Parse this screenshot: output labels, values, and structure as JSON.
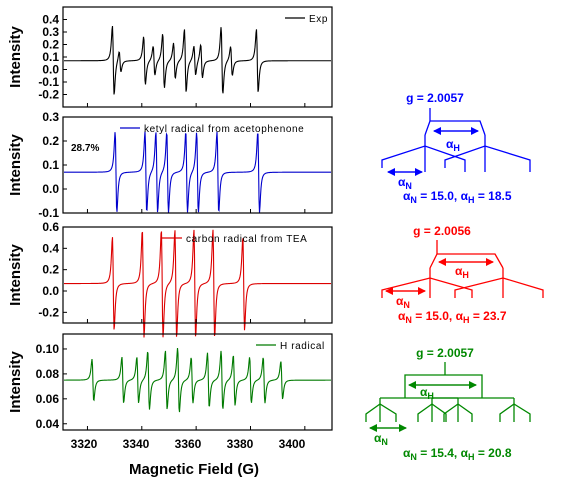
{
  "chart_data": [
    {
      "type": "line",
      "panel": "Exp",
      "ylabel": "Intensity",
      "ylim": [
        -0.3,
        0.5
      ],
      "yticks": [
        "0.4",
        "0.3",
        "0.2",
        "0.1",
        "0.0",
        "-0.1",
        "-0.2"
      ],
      "ytick_values": [
        0.4,
        0.3,
        0.2,
        0.1,
        0.0,
        -0.1,
        -0.2
      ],
      "series": [
        {
          "name": "Exp",
          "color": "#000000",
          "baseline": 0.07,
          "lines": [
            {
              "x": 3329.5,
              "h": 0.33
            },
            {
              "x": 3332.0,
              "h": 0.1
            },
            {
              "x": 3341.0,
              "h": 0.23
            },
            {
              "x": 3344.5,
              "h": 0.14
            },
            {
              "x": 3348.0,
              "h": 0.26
            },
            {
              "x": 3352.0,
              "h": 0.17
            },
            {
              "x": 3356.0,
              "h": 0.3
            },
            {
              "x": 3359.5,
              "h": 0.14
            },
            {
              "x": 3362.0,
              "h": 0.16
            },
            {
              "x": 3369.5,
              "h": 0.32
            },
            {
              "x": 3373.0,
              "h": 0.14
            },
            {
              "x": 3382.5,
              "h": 0.3
            }
          ]
        }
      ]
    },
    {
      "type": "line",
      "panel": "ketyl",
      "ylabel": "Intensity",
      "ylim": [
        -0.1,
        0.3
      ],
      "yticks": [
        "0.3",
        "0.2",
        "0.1",
        "0.0",
        "-0.1"
      ],
      "ytick_values": [
        0.3,
        0.2,
        0.1,
        0.0,
        -0.1
      ],
      "annotation": "28.7%",
      "series": [
        {
          "name": "ketyl radical from acetophenone",
          "color": "#0000cc",
          "baseline": 0.07,
          "lines": [
            {
              "x": 3330.5,
              "h": 0.2
            },
            {
              "x": 3341.5,
              "h": 0.2
            },
            {
              "x": 3345.5,
              "h": 0.2
            },
            {
              "x": 3349.5,
              "h": 0.2
            },
            {
              "x": 3356.5,
              "h": 0.2
            },
            {
              "x": 3360.5,
              "h": 0.2
            },
            {
              "x": 3368.0,
              "h": 0.2
            },
            {
              "x": 3383.0,
              "h": 0.2
            }
          ]
        }
      ]
    },
    {
      "type": "line",
      "panel": "carbon",
      "ylabel": "Intensity",
      "ylim": [
        -0.3,
        0.6
      ],
      "yticks": [
        "0.6",
        "0.4",
        "0.2",
        "0.0",
        "-0.2"
      ],
      "ytick_values": [
        0.6,
        0.4,
        0.2,
        0.0,
        -0.2
      ],
      "series": [
        {
          "name": "carbon radical from TEA",
          "color": "#dd0000",
          "baseline": 0.07,
          "lines": [
            {
              "x": 3329.5,
              "h": 0.52
            },
            {
              "x": 3340.5,
              "h": 0.6
            },
            {
              "x": 3347.5,
              "h": 0.6
            },
            {
              "x": 3352.5,
              "h": 0.6
            },
            {
              "x": 3359.5,
              "h": 0.6
            },
            {
              "x": 3366.5,
              "h": 0.6
            },
            {
              "x": 3377.5,
              "h": 0.52
            }
          ]
        }
      ]
    },
    {
      "type": "line",
      "panel": "H",
      "ylabel": "Intensity",
      "xlabel": "Magnetic Field (G)",
      "xlim": [
        3311,
        3410
      ],
      "xticks": [
        3320,
        3340,
        3360,
        3380,
        3400
      ],
      "ylim": [
        0.035,
        0.112
      ],
      "yticks": [
        "0.10",
        "0.08",
        "0.06",
        "0.04"
      ],
      "ytick_values": [
        0.1,
        0.08,
        0.06,
        0.04
      ],
      "series": [
        {
          "name": "H radical",
          "color": "#007a00",
          "baseline": 0.075,
          "lines": [
            {
              "x": 3322.0,
              "h": 0.02
            },
            {
              "x": 3333.0,
              "h": 0.022
            },
            {
              "x": 3338.5,
              "h": 0.022
            },
            {
              "x": 3342.5,
              "h": 0.028
            },
            {
              "x": 3349.0,
              "h": 0.028
            },
            {
              "x": 3353.5,
              "h": 0.031
            },
            {
              "x": 3358.5,
              "h": 0.022
            },
            {
              "x": 3364.5,
              "h": 0.026
            },
            {
              "x": 3369.5,
              "h": 0.028
            },
            {
              "x": 3374.0,
              "h": 0.024
            },
            {
              "x": 3380.0,
              "h": 0.022
            },
            {
              "x": 3385.0,
              "h": 0.022
            },
            {
              "x": 3391.5,
              "h": 0.018
            }
          ]
        }
      ]
    }
  ],
  "xticks_labels": [
    "3320",
    "3340",
    "3360",
    "3380",
    "3400"
  ],
  "diagrams": [
    {
      "color": "#0000ff",
      "g_label": "g = 2.0057",
      "aH_sym": "α",
      "aH_sub": "H",
      "aN_sym": "α",
      "aN_sub": "N",
      "params": {
        "aN_sym": "α",
        "aN_sub": "N",
        "aN_val": " = 15.0, ",
        "aH_sym": "α",
        "aH_sub": "H",
        "aH_val": " = 18.5"
      }
    },
    {
      "color": "#ff0000",
      "g_label": "g = 2.0056",
      "aH_sym": "α",
      "aH_sub": "H",
      "aN_sym": "α",
      "aN_sub": "N",
      "params": {
        "aN_sym": "α",
        "aN_sub": "N",
        "aN_val": " = 15.0, ",
        "aH_sym": "α",
        "aH_sub": "H",
        "aH_val": " = 23.7"
      }
    },
    {
      "color": "#008800",
      "g_label": "g = 2.0057",
      "aH_sym": "α",
      "aH_sub": "H",
      "aN_sym": "α",
      "aN_sub": "N",
      "params": {
        "aN_sym": "α",
        "aN_sub": "N",
        "aN_val": " = 15.4, ",
        "aH_sym": "α",
        "aH_sub": "H",
        "aH_val": " = 20.8"
      }
    }
  ]
}
